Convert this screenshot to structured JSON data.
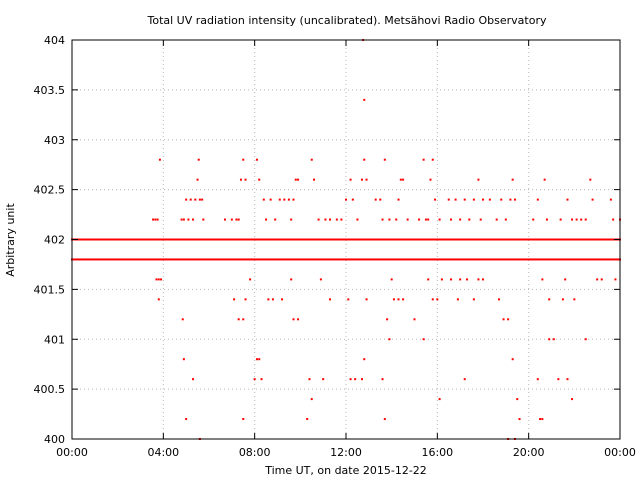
{
  "chart_data": {
    "type": "scatter",
    "title": "Total UV radiation intensity (uncalibrated). Metsähovi Radio Observatory",
    "xlabel": "Time UT, on date 2015-12-22",
    "ylabel": "Arbitrary unit",
    "x_unit": "hours UT",
    "xlim": [
      0,
      24
    ],
    "ylim": [
      400,
      404
    ],
    "grid": true,
    "marker_color": "#ff0000",
    "x_ticks": [
      {
        "value": 0,
        "label": "00:00"
      },
      {
        "value": 4,
        "label": "04:00"
      },
      {
        "value": 8,
        "label": "08:00"
      },
      {
        "value": 12,
        "label": "12:00"
      },
      {
        "value": 16,
        "label": "16:00"
      },
      {
        "value": 20,
        "label": "20:00"
      },
      {
        "value": 24,
        "label": "00:00"
      }
    ],
    "y_ticks": [
      {
        "value": 400,
        "label": "400"
      },
      {
        "value": 400.5,
        "label": "400.5"
      },
      {
        "value": 401,
        "label": "401"
      },
      {
        "value": 401.5,
        "label": "401.5"
      },
      {
        "value": 402,
        "label": "402"
      },
      {
        "value": 402.5,
        "label": "402.5"
      },
      {
        "value": 403,
        "label": "403"
      },
      {
        "value": 403.5,
        "label": "403.5"
      },
      {
        "value": 404,
        "label": "404"
      }
    ],
    "dense_levels": [
      {
        "y": 402.0,
        "x_range": [
          0,
          24
        ]
      },
      {
        "y": 401.8,
        "x_range": [
          0,
          24
        ]
      }
    ],
    "points": [
      [
        3.55,
        402.2
      ],
      [
        3.65,
        402.2
      ],
      [
        3.75,
        402.2
      ],
      [
        3.85,
        402.8
      ],
      [
        3.8,
        401.6
      ],
      [
        3.7,
        401.6
      ],
      [
        3.9,
        401.6
      ],
      [
        3.8,
        401.4
      ],
      [
        4.8,
        402.2
      ],
      [
        4.9,
        402.2
      ],
      [
        5.0,
        402.4
      ],
      [
        5.1,
        402.2
      ],
      [
        5.2,
        402.4
      ],
      [
        5.3,
        402.2
      ],
      [
        5.4,
        402.4
      ],
      [
        5.5,
        402.6
      ],
      [
        5.55,
        402.8
      ],
      [
        5.6,
        402.4
      ],
      [
        5.7,
        402.4
      ],
      [
        5.75,
        402.2
      ],
      [
        4.85,
        401.2
      ],
      [
        4.9,
        400.8
      ],
      [
        5.0,
        400.2
      ],
      [
        5.3,
        400.6
      ],
      [
        5.6,
        400.0
      ],
      [
        6.7,
        402.2
      ],
      [
        7.0,
        402.2
      ],
      [
        7.2,
        402.2
      ],
      [
        7.3,
        402.2
      ],
      [
        7.4,
        402.6
      ],
      [
        7.5,
        402.8
      ],
      [
        7.6,
        402.6
      ],
      [
        7.1,
        401.4
      ],
      [
        7.3,
        401.2
      ],
      [
        7.5,
        401.2
      ],
      [
        7.6,
        401.4
      ],
      [
        7.5,
        400.2
      ],
      [
        7.8,
        401.6
      ],
      [
        8.0,
        400.6
      ],
      [
        8.1,
        400.8
      ],
      [
        8.2,
        400.8
      ],
      [
        8.3,
        400.6
      ],
      [
        8.1,
        402.8
      ],
      [
        8.2,
        402.6
      ],
      [
        8.4,
        402.4
      ],
      [
        8.5,
        402.2
      ],
      [
        8.7,
        402.4
      ],
      [
        8.9,
        402.2
      ],
      [
        9.1,
        402.4
      ],
      [
        9.3,
        402.4
      ],
      [
        9.5,
        402.4
      ],
      [
        9.6,
        402.2
      ],
      [
        9.7,
        402.4
      ],
      [
        9.8,
        402.6
      ],
      [
        9.9,
        402.6
      ],
      [
        8.6,
        401.4
      ],
      [
        8.8,
        401.4
      ],
      [
        9.6,
        401.6
      ],
      [
        9.7,
        401.2
      ],
      [
        9.9,
        401.2
      ],
      [
        9.2,
        401.4
      ],
      [
        10.3,
        400.2
      ],
      [
        10.4,
        400.6
      ],
      [
        10.5,
        400.4
      ],
      [
        10.5,
        402.8
      ],
      [
        10.6,
        402.6
      ],
      [
        10.8,
        402.2
      ],
      [
        11.1,
        402.2
      ],
      [
        11.3,
        402.2
      ],
      [
        11.6,
        402.2
      ],
      [
        11.8,
        402.2
      ],
      [
        10.9,
        401.6
      ],
      [
        11.3,
        401.4
      ],
      [
        11.0,
        400.6
      ],
      [
        12.0,
        402.4
      ],
      [
        12.2,
        402.6
      ],
      [
        12.3,
        402.4
      ],
      [
        12.5,
        402.2
      ],
      [
        12.7,
        402.6
      ],
      [
        12.8,
        402.8
      ],
      [
        12.9,
        402.6
      ],
      [
        12.75,
        404.0
      ],
      [
        12.8,
        403.4
      ],
      [
        12.1,
        401.4
      ],
      [
        12.2,
        400.6
      ],
      [
        12.4,
        400.6
      ],
      [
        12.7,
        400.6
      ],
      [
        12.8,
        400.8
      ],
      [
        12.9,
        401.4
      ],
      [
        13.3,
        402.4
      ],
      [
        13.5,
        402.4
      ],
      [
        13.7,
        402.8
      ],
      [
        13.6,
        402.2
      ],
      [
        13.9,
        402.2
      ],
      [
        14.2,
        402.2
      ],
      [
        14.3,
        402.4
      ],
      [
        14.4,
        402.6
      ],
      [
        14.5,
        402.6
      ],
      [
        14.7,
        402.2
      ],
      [
        13.8,
        401.2
      ],
      [
        13.9,
        401.0
      ],
      [
        14.0,
        401.6
      ],
      [
        14.1,
        401.4
      ],
      [
        14.3,
        401.4
      ],
      [
        14.5,
        401.4
      ],
      [
        13.7,
        400.2
      ],
      [
        13.6,
        400.6
      ],
      [
        15.0,
        401.2
      ],
      [
        15.2,
        402.2
      ],
      [
        15.4,
        402.8
      ],
      [
        15.5,
        402.2
      ],
      [
        15.6,
        402.2
      ],
      [
        15.7,
        402.6
      ],
      [
        15.8,
        402.8
      ],
      [
        15.9,
        402.4
      ],
      [
        16.1,
        402.2
      ],
      [
        15.6,
        401.6
      ],
      [
        15.8,
        401.4
      ],
      [
        16.0,
        401.4
      ],
      [
        16.2,
        401.6
      ],
      [
        15.4,
        401.0
      ],
      [
        16.1,
        400.4
      ],
      [
        16.5,
        402.4
      ],
      [
        16.6,
        402.2
      ],
      [
        16.8,
        402.4
      ],
      [
        17.0,
        402.2
      ],
      [
        17.2,
        402.4
      ],
      [
        17.4,
        402.2
      ],
      [
        17.6,
        402.4
      ],
      [
        17.8,
        402.6
      ],
      [
        17.9,
        402.2
      ],
      [
        18.0,
        402.4
      ],
      [
        16.6,
        401.6
      ],
      [
        17.0,
        401.6
      ],
      [
        17.3,
        401.6
      ],
      [
        17.8,
        401.6
      ],
      [
        18.0,
        401.6
      ],
      [
        16.9,
        401.4
      ],
      [
        17.6,
        401.4
      ],
      [
        17.2,
        400.6
      ],
      [
        18.3,
        402.4
      ],
      [
        18.6,
        402.2
      ],
      [
        18.8,
        402.4
      ],
      [
        19.0,
        402.2
      ],
      [
        19.2,
        402.4
      ],
      [
        19.4,
        402.4
      ],
      [
        18.7,
        401.4
      ],
      [
        18.9,
        401.2
      ],
      [
        19.1,
        401.2
      ],
      [
        19.3,
        400.8
      ],
      [
        19.1,
        400.0
      ],
      [
        19.4,
        400.0
      ],
      [
        19.6,
        400.2
      ],
      [
        19.5,
        400.4
      ],
      [
        19.3,
        402.6
      ],
      [
        20.2,
        402.2
      ],
      [
        20.4,
        402.4
      ],
      [
        20.7,
        402.6
      ],
      [
        20.8,
        402.2
      ],
      [
        20.6,
        401.6
      ],
      [
        20.9,
        401.4
      ],
      [
        20.5,
        400.2
      ],
      [
        20.6,
        400.2
      ],
      [
        20.4,
        400.6
      ],
      [
        20.9,
        401.0
      ],
      [
        21.1,
        401.0
      ],
      [
        21.4,
        402.2
      ],
      [
        21.7,
        402.4
      ],
      [
        21.9,
        402.2
      ],
      [
        22.1,
        402.2
      ],
      [
        22.3,
        402.2
      ],
      [
        22.5,
        402.2
      ],
      [
        21.6,
        401.6
      ],
      [
        21.5,
        401.4
      ],
      [
        22.0,
        401.4
      ],
      [
        21.3,
        400.6
      ],
      [
        21.7,
        400.6
      ],
      [
        21.9,
        400.4
      ],
      [
        22.5,
        401.0
      ],
      [
        22.7,
        402.6
      ],
      [
        22.8,
        402.4
      ],
      [
        23.0,
        401.6
      ],
      [
        23.2,
        401.6
      ],
      [
        23.6,
        402.4
      ],
      [
        23.7,
        402.2
      ],
      [
        23.8,
        401.6
      ],
      [
        24.0,
        402.2
      ]
    ]
  }
}
